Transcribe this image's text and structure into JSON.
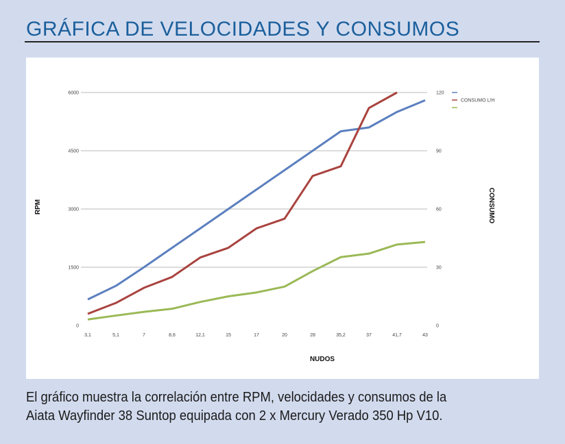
{
  "header": {
    "title": "GRÁFICA DE VELOCIDADES Y CONSUMOS"
  },
  "caption": {
    "line1": "El gráfico muestra la correlación entre RPM, velocidades y consumos de la",
    "line2": "Aiata Wayfinder 38 Suntop equipada con 2 x Mercury Verado 350 Hp V10."
  },
  "chart_data": {
    "type": "line",
    "title": "",
    "xlabel": "NUDOS",
    "ylabel": "RPM",
    "y2label": "CONSUMO",
    "categories": [
      "3,1",
      "5,1",
      "7",
      "8,6",
      "12,1",
      "15",
      "17",
      "20",
      "28",
      "35,2",
      "37",
      "41,7",
      "43"
    ],
    "ylim": [
      0,
      6000
    ],
    "y2lim": [
      0,
      120
    ],
    "yticks": [
      "0",
      "1500",
      "3000",
      "4500",
      "6000"
    ],
    "y2ticks": [
      "0",
      "30",
      "60",
      "90",
      "120"
    ],
    "grid": true,
    "legend_position": "top-right",
    "series": [
      {
        "name": "",
        "axis": "left",
        "color": "#5b7fbf",
        "values": [
          670,
          1020,
          1500,
          2000,
          2500,
          3000,
          3500,
          4000,
          4500,
          5000,
          5100,
          5500,
          5800
        ]
      },
      {
        "name": "CONSUMO L/H",
        "axis": "right",
        "color": "#a9433f",
        "values": [
          6,
          11.6,
          19.4,
          25,
          35,
          40,
          50,
          55,
          77,
          82,
          112,
          120,
          null
        ]
      },
      {
        "name": "",
        "axis": "right",
        "color": "#9ab956",
        "values": [
          3.1,
          5.1,
          7,
          8.6,
          12.1,
          15,
          17,
          20,
          28,
          35.2,
          37,
          41.7,
          43
        ]
      }
    ]
  }
}
